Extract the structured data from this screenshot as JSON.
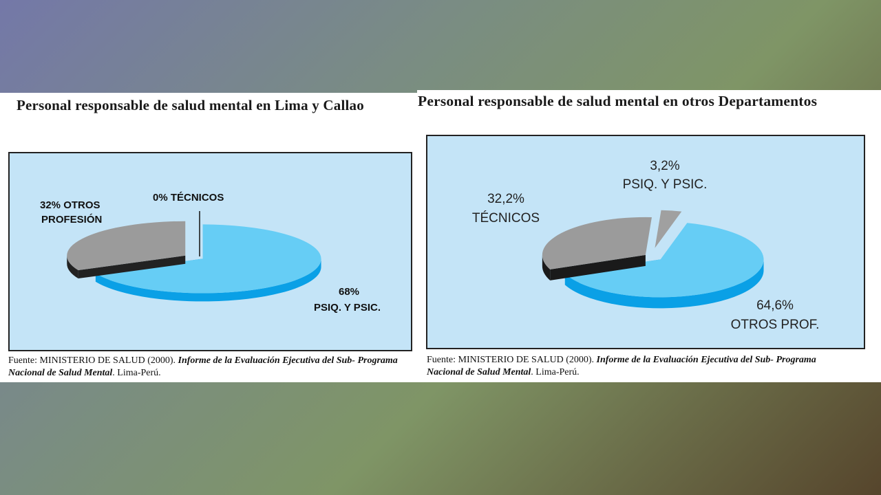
{
  "chart_data": [
    {
      "type": "pie",
      "title": "Personal responsable de salud mental en Lima y Callao",
      "slices": [
        {
          "pct": "68%",
          "label": "PSIQ. Y PSIC.",
          "value": 68,
          "color": "#66cdf5",
          "side_color": "#0aa0e6"
        },
        {
          "pct": "32% OTROS",
          "label": "PROFESIÓN",
          "value": 32,
          "color": "#9b9b9b",
          "side_color": "#222222"
        },
        {
          "pct": "0% TÉCNICOS",
          "label": "",
          "value": 0,
          "color": "#9b9b9b",
          "side_color": "#222222"
        }
      ],
      "source_prefix": "Fuente: MINISTERIO DE SALUD (2000).",
      "source_italic_1": "Informe de la Evaluación Ejecutiva del Sub- Programa",
      "source_italic_2": "Nacional de Salud Mental",
      "source_suffix": ". Lima-Perú."
    },
    {
      "type": "pie",
      "title": "Personal responsable de salud mental en otros Departamentos",
      "slices": [
        {
          "pct": "64,6%",
          "label": "OTROS PROF.",
          "value": 64.6,
          "color": "#66cdf5",
          "side_color": "#0aa0e6"
        },
        {
          "pct": "32,2%",
          "label": "TÉCNICOS",
          "value": 32.2,
          "color": "#9b9b9b",
          "side_color": "#1a1a1a"
        },
        {
          "pct": "3,2%",
          "label": "PSIQ. Y PSIC.",
          "value": 3.2,
          "color": "#a0a0a0",
          "side_color": "#0aa0e6"
        }
      ],
      "source_prefix": "Fuente: MINISTERIO DE SALUD (2000).",
      "source_italic_1": "Informe de la Evaluación Ejecutiva del Sub- Programa",
      "source_italic_2": "Nacional de Salud Mental",
      "source_suffix": ". Lima-Perú."
    }
  ]
}
